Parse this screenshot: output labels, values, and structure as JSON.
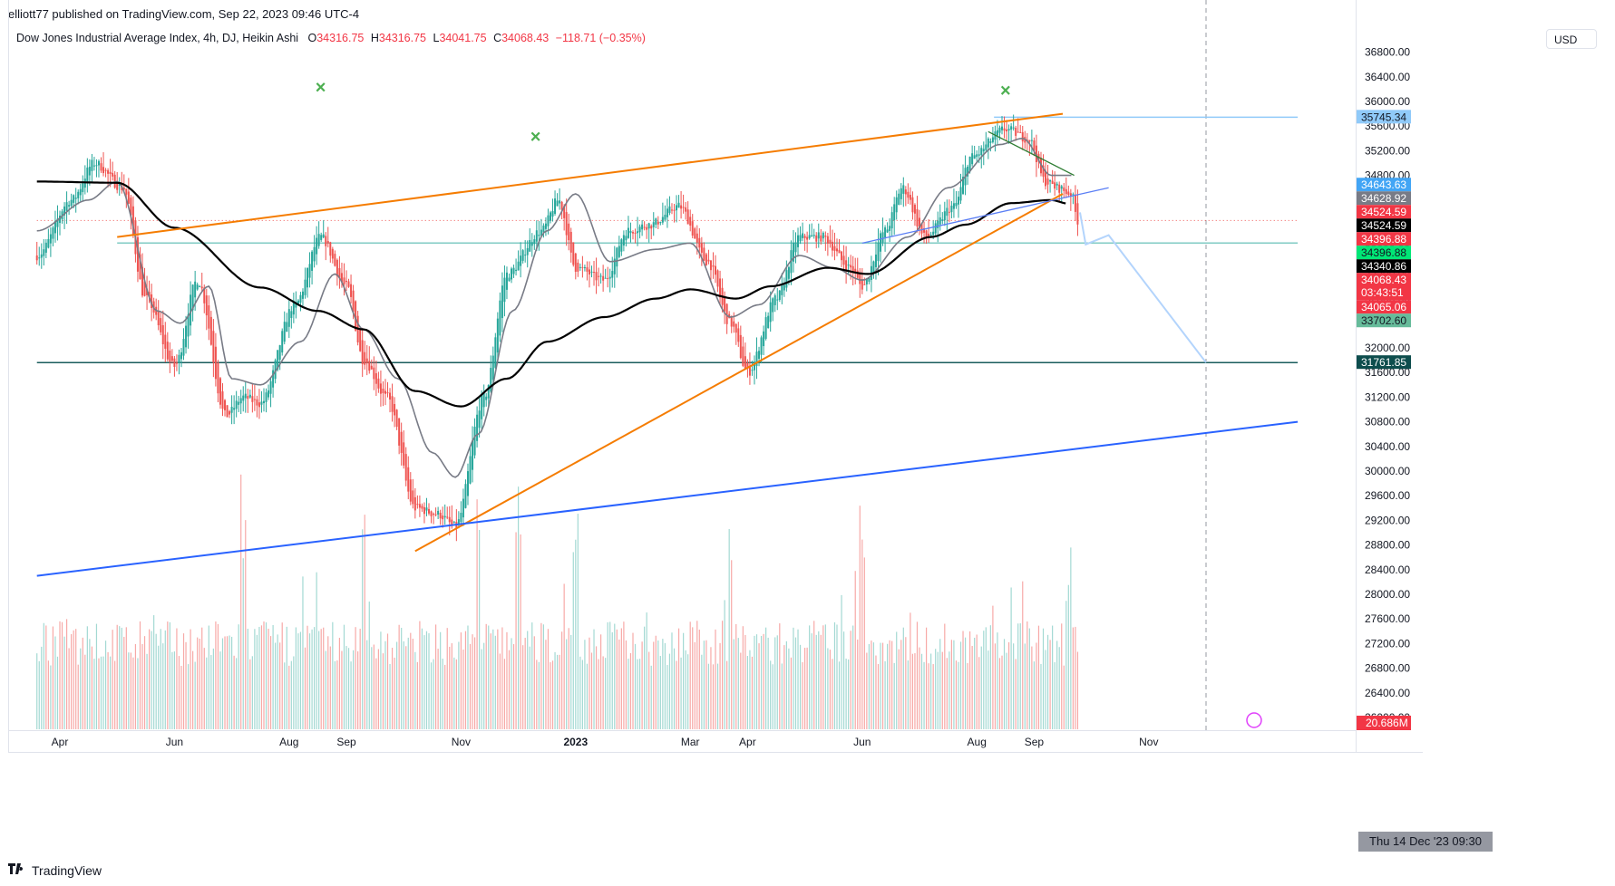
{
  "publisher": "elliott77 published on TradingView.com, Sep 22, 2023 09:46 UTC-4",
  "symbol": "Dow Jones Industrial Average Index, 4h, DJ, Heikin Ashi",
  "ohlc": {
    "o_label": "O",
    "o": "34316.75",
    "h_label": "H",
    "h": "34316.75",
    "l_label": "L",
    "l": "34041.75",
    "c_label": "C",
    "c": "34068.43",
    "change": "−118.71 (−0.35%)"
  },
  "currency": "USD",
  "footer_brand": "TradingView",
  "crosshair_date": "Thu 14 Dec '23   09:30",
  "colors": {
    "bull": "#26a69a",
    "bear": "#ef5350",
    "orange": "#f57c00",
    "blue": "#2962ff",
    "ma200": "#000000",
    "gray_ma": "#787b86"
  },
  "chart_data": {
    "type": "candlestick",
    "ylim": [
      25800,
      37000
    ],
    "y_ticks": [
      26000,
      26400,
      26800,
      27200,
      27600,
      28000,
      28400,
      28800,
      29200,
      29600,
      30000,
      30400,
      30800,
      31200,
      31600,
      32000,
      32400,
      32800,
      33200,
      33600,
      34000,
      34400,
      34800,
      35200,
      35600,
      36000,
      36400,
      36800
    ],
    "x_labels": [
      "Apr",
      "Jun",
      "Aug",
      "Sep",
      "Nov",
      "2023",
      "Mar",
      "Apr",
      "Jun",
      "Aug",
      "Sep",
      "Nov"
    ],
    "x_label_months": [
      0,
      2,
      4,
      5,
      7,
      9,
      11,
      12,
      14,
      16,
      17,
      19
    ],
    "price_labels": [
      {
        "text": "35745.34",
        "value": 35745.34,
        "bg": "#90caf9",
        "fg": "#131722"
      },
      {
        "text": "34643.63",
        "value": 34643.63,
        "bg": "#42a5f5",
        "fg": "#ffffff"
      },
      {
        "text": "34628.92",
        "value": 34628.92,
        "bg": "#787b86",
        "fg": "#ffffff"
      },
      {
        "text": "34524.59",
        "value": 34524.59,
        "bg": "#f23645",
        "fg": "#ffffff"
      },
      {
        "text": "34524.59",
        "value": 34524.59,
        "bg": "#000000",
        "fg": "#ffffff"
      },
      {
        "text": "34396.88",
        "value": 34396.88,
        "bg": "#f23645",
        "fg": "#ffffff"
      },
      {
        "text": "34396.88",
        "value": 34396.88,
        "bg": "#00e676",
        "fg": "#131722"
      },
      {
        "text": "34340.86",
        "value": 34340.86,
        "bg": "#000000",
        "fg": "#ffffff"
      },
      {
        "text": "34068.43",
        "value": 34068.43,
        "bg": "#f23645",
        "fg": "#ffffff",
        "sub": "03:43:51"
      },
      {
        "text": "34065.06",
        "value": 34065.06,
        "bg": "#f23645",
        "fg": "#ffffff"
      },
      {
        "text": "33702.60",
        "value": 33702.6,
        "bg": "#66bb9a",
        "fg": "#131722"
      },
      {
        "text": "31761.85",
        "value": 31761.85,
        "bg": "#0d4d4d",
        "fg": "#ffffff"
      }
    ],
    "volume_label": "20.686M",
    "markers": [
      {
        "month": 4.55,
        "price": 36130,
        "text": "×"
      },
      {
        "month": 8.3,
        "price": 35330,
        "text": "×"
      },
      {
        "month": 16.5,
        "price": 36080,
        "text": "×"
      }
    ],
    "lines": {
      "orange_upper": [
        [
          1.0,
          33800
        ],
        [
          17.5,
          35800
        ]
      ],
      "orange_lower": [
        [
          6.2,
          28700
        ],
        [
          17.5,
          34500
        ]
      ],
      "blue_lower": [
        [
          -0.4,
          28300
        ],
        [
          21.6,
          30800
        ]
      ],
      "blue_short": [
        [
          14.0,
          33700
        ],
        [
          18.3,
          34600
        ]
      ],
      "dark_green_down": [
        [
          16.2,
          35510
        ],
        [
          17.7,
          34800
        ]
      ],
      "h_lightblue": {
        "price": 35745.34,
        "from": 16.3,
        "to": 21.6
      },
      "h_teal": {
        "price": 33702.6,
        "from": 1.0,
        "to": 21.6
      },
      "h_dark": {
        "price": 31761.85,
        "from": -0.4,
        "to": 21.6
      },
      "h_dotted_red": {
        "price": 34068.43,
        "from": -0.4,
        "to": 21.6
      },
      "projection": [
        [
          17.8,
          34200
        ],
        [
          17.9,
          33680
        ],
        [
          18.3,
          33830
        ],
        [
          20.0,
          31761.85
        ]
      ],
      "crosshair_month": 20.0
    },
    "series": {
      "ma200_anchors": [
        [
          -0.4,
          34700
        ],
        [
          1.0,
          34680
        ],
        [
          2.0,
          33950
        ],
        [
          3.5,
          32980
        ],
        [
          4.5,
          32600
        ],
        [
          5.3,
          32300
        ],
        [
          6.2,
          31300
        ],
        [
          7.0,
          31050
        ],
        [
          7.8,
          31500
        ],
        [
          8.5,
          32100
        ],
        [
          9.5,
          32500
        ],
        [
          10.4,
          32800
        ],
        [
          11.0,
          32950
        ],
        [
          11.8,
          32800
        ],
        [
          12.4,
          33000
        ],
        [
          13.4,
          33300
        ],
        [
          14.1,
          33200
        ],
        [
          15.2,
          33800
        ],
        [
          15.8,
          34000
        ],
        [
          16.6,
          34350
        ],
        [
          17.3,
          34400
        ],
        [
          17.6,
          34340
        ]
      ],
      "gray_ma_anchors": [
        [
          -0.4,
          33900
        ],
        [
          0.5,
          34400
        ],
        [
          1.0,
          34700
        ],
        [
          1.7,
          32600
        ],
        [
          2.1,
          32400
        ],
        [
          2.6,
          33000
        ],
        [
          3.0,
          31500
        ],
        [
          3.5,
          31400
        ],
        [
          4.2,
          32100
        ],
        [
          4.8,
          33200
        ],
        [
          5.3,
          32300
        ],
        [
          5.9,
          31500
        ],
        [
          6.5,
          30300
        ],
        [
          6.9,
          29900
        ],
        [
          7.3,
          30600
        ],
        [
          7.9,
          32600
        ],
        [
          8.5,
          33900
        ],
        [
          9.0,
          34500
        ],
        [
          9.6,
          33400
        ],
        [
          10.4,
          33600
        ],
        [
          11.0,
          33700
        ],
        [
          11.7,
          32500
        ],
        [
          12.2,
          32700
        ],
        [
          12.9,
          33500
        ],
        [
          13.5,
          33300
        ],
        [
          14.0,
          33100
        ],
        [
          14.8,
          33800
        ],
        [
          15.5,
          34600
        ],
        [
          16.4,
          35300
        ],
        [
          16.8,
          35400
        ],
        [
          17.3,
          34800
        ],
        [
          17.7,
          34800
        ]
      ],
      "price_anchors": [
        [
          -0.4,
          33500
        ],
        [
          0.2,
          34400
        ],
        [
          0.6,
          35000
        ],
        [
          1.1,
          34600
        ],
        [
          1.5,
          32800
        ],
        [
          2.0,
          31700
        ],
        [
          2.4,
          33100
        ],
        [
          2.9,
          30900
        ],
        [
          3.2,
          31200
        ],
        [
          3.5,
          31100
        ],
        [
          4.1,
          32700
        ],
        [
          4.55,
          33800
        ],
        [
          5.0,
          33000
        ],
        [
          5.3,
          31800
        ],
        [
          5.7,
          31200
        ],
        [
          6.2,
          29400
        ],
        [
          6.6,
          29300
        ],
        [
          6.9,
          29100
        ],
        [
          7.4,
          31200
        ],
        [
          7.8,
          33200
        ],
        [
          8.4,
          33900
        ],
        [
          8.7,
          34400
        ],
        [
          9.0,
          33300
        ],
        [
          9.5,
          33100
        ],
        [
          9.9,
          33900
        ],
        [
          10.3,
          34000
        ],
        [
          10.8,
          34300
        ],
        [
          11.3,
          33400
        ],
        [
          11.7,
          32400
        ],
        [
          12.0,
          31600
        ],
        [
          12.5,
          32800
        ],
        [
          12.9,
          33800
        ],
        [
          13.3,
          33800
        ],
        [
          13.8,
          33300
        ],
        [
          14.0,
          33000
        ],
        [
          14.4,
          33900
        ],
        [
          14.7,
          34600
        ],
        [
          15.1,
          33800
        ],
        [
          15.6,
          34300
        ],
        [
          15.9,
          35100
        ],
        [
          16.5,
          35550
        ],
        [
          16.9,
          35400
        ],
        [
          17.2,
          34700
        ],
        [
          17.4,
          34600
        ],
        [
          17.65,
          34500
        ],
        [
          17.76,
          34068
        ]
      ]
    },
    "volume_peaks": [
      [
        3.2,
        2.5
      ],
      [
        5.3,
        2.2
      ],
      [
        7.3,
        2.6
      ],
      [
        8.0,
        2.3
      ],
      [
        9.0,
        2.1
      ],
      [
        11.7,
        2.2
      ],
      [
        14.0,
        2.4
      ],
      [
        17.6,
        1.9
      ]
    ]
  }
}
